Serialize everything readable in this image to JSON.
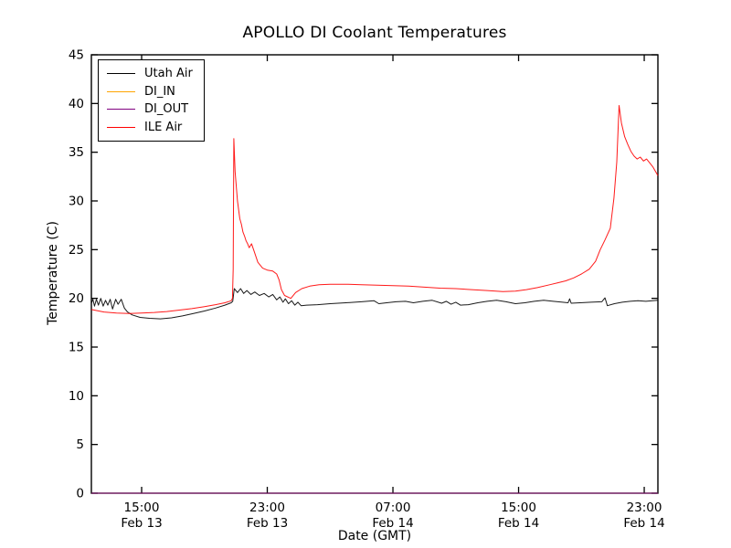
{
  "title": "APOLLO DI Coolant Temperatures",
  "axes": {
    "xlabel": "Date (GMT)",
    "ylabel": "Temperature (C)",
    "frame_color": "#000000",
    "background": "#ffffff"
  },
  "legend": {
    "position": "upper left",
    "items": [
      {
        "label": "Utah Air",
        "color": "#000000"
      },
      {
        "label": "DI_IN",
        "color": "#ffa500"
      },
      {
        "label": "DI_OUT",
        "color": "#800080"
      },
      {
        "label": "ILE Air",
        "color": "#ff0000"
      }
    ]
  },
  "chart_data": {
    "type": "line",
    "title": "APOLLO DI Coolant Temperatures",
    "xlabel": "Date (GMT)",
    "ylabel": "Temperature (C)",
    "ylim": [
      0,
      45
    ],
    "grid": false,
    "legend_position": "upper left",
    "x_unit": "hours after Feb 13 12:00 GMT",
    "xlim": [
      -0.2,
      35.87
    ],
    "y_ticks": [
      0,
      5,
      10,
      15,
      20,
      25,
      30,
      35,
      40,
      45
    ],
    "x_ticks": [
      {
        "t": 3,
        "time": "15:00",
        "date": "Feb 13"
      },
      {
        "t": 11,
        "time": "23:00",
        "date": "Feb 13"
      },
      {
        "t": 19,
        "time": "07:00",
        "date": "Feb 14"
      },
      {
        "t": 27,
        "time": "15:00",
        "date": "Feb 14"
      },
      {
        "t": 35,
        "time": "23:00",
        "date": "Feb 14"
      }
    ],
    "series": [
      {
        "name": "Utah Air",
        "color": "#000000",
        "points": [
          [
            -0.2,
            19.5
          ],
          [
            -0.1,
            19.9
          ],
          [
            0.0,
            19.2
          ],
          [
            0.12,
            19.9
          ],
          [
            0.25,
            19.3
          ],
          [
            0.4,
            20.0
          ],
          [
            0.55,
            19.2
          ],
          [
            0.7,
            19.8
          ],
          [
            0.85,
            19.3
          ],
          [
            1.0,
            19.9
          ],
          [
            1.15,
            18.9
          ],
          [
            1.35,
            19.9
          ],
          [
            1.5,
            19.4
          ],
          [
            1.7,
            19.9
          ],
          [
            1.9,
            19.0
          ],
          [
            2.1,
            18.6
          ],
          [
            2.4,
            18.3
          ],
          [
            2.9,
            18.05
          ],
          [
            3.5,
            17.95
          ],
          [
            4.2,
            17.9
          ],
          [
            4.9,
            18.0
          ],
          [
            5.6,
            18.2
          ],
          [
            6.3,
            18.45
          ],
          [
            7.0,
            18.7
          ],
          [
            7.7,
            19.0
          ],
          [
            8.3,
            19.3
          ],
          [
            8.7,
            19.55
          ],
          [
            8.8,
            19.7
          ],
          [
            8.9,
            21.0
          ],
          [
            9.1,
            20.6
          ],
          [
            9.3,
            21.0
          ],
          [
            9.5,
            20.5
          ],
          [
            9.7,
            20.8
          ],
          [
            9.95,
            20.4
          ],
          [
            10.2,
            20.65
          ],
          [
            10.5,
            20.3
          ],
          [
            10.8,
            20.5
          ],
          [
            11.1,
            20.15
          ],
          [
            11.35,
            20.4
          ],
          [
            11.6,
            19.85
          ],
          [
            11.8,
            20.15
          ],
          [
            12.0,
            19.6
          ],
          [
            12.15,
            19.95
          ],
          [
            12.35,
            19.45
          ],
          [
            12.55,
            19.75
          ],
          [
            12.75,
            19.3
          ],
          [
            12.95,
            19.6
          ],
          [
            13.15,
            19.25
          ],
          [
            13.5,
            19.3
          ],
          [
            14.2,
            19.35
          ],
          [
            15.0,
            19.45
          ],
          [
            16.0,
            19.55
          ],
          [
            17.0,
            19.65
          ],
          [
            17.8,
            19.75
          ],
          [
            18.1,
            19.45
          ],
          [
            18.6,
            19.55
          ],
          [
            19.2,
            19.65
          ],
          [
            19.8,
            19.7
          ],
          [
            20.3,
            19.55
          ],
          [
            20.9,
            19.7
          ],
          [
            21.5,
            19.8
          ],
          [
            22.1,
            19.5
          ],
          [
            22.4,
            19.7
          ],
          [
            22.7,
            19.4
          ],
          [
            23.0,
            19.6
          ],
          [
            23.3,
            19.3
          ],
          [
            23.8,
            19.35
          ],
          [
            24.4,
            19.55
          ],
          [
            25.0,
            19.7
          ],
          [
            25.6,
            19.8
          ],
          [
            26.2,
            19.65
          ],
          [
            26.8,
            19.45
          ],
          [
            27.4,
            19.55
          ],
          [
            28.0,
            19.7
          ],
          [
            28.6,
            19.8
          ],
          [
            29.2,
            19.7
          ],
          [
            29.8,
            19.6
          ],
          [
            30.15,
            19.55
          ],
          [
            30.25,
            19.95
          ],
          [
            30.35,
            19.5
          ],
          [
            30.9,
            19.55
          ],
          [
            31.6,
            19.6
          ],
          [
            32.3,
            19.65
          ],
          [
            32.5,
            20.05
          ],
          [
            32.65,
            19.25
          ],
          [
            33.1,
            19.45
          ],
          [
            33.6,
            19.6
          ],
          [
            34.1,
            19.7
          ],
          [
            34.6,
            19.75
          ],
          [
            35.1,
            19.7
          ],
          [
            35.87,
            19.8
          ]
        ]
      },
      {
        "name": "DI_IN",
        "color": "#ffa500",
        "points": [
          [
            -0.2,
            0
          ],
          [
            35.87,
            0
          ]
        ]
      },
      {
        "name": "DI_OUT",
        "color": "#800080",
        "points": [
          [
            -0.2,
            0
          ],
          [
            35.87,
            0
          ]
        ]
      },
      {
        "name": "ILE Air",
        "color": "#ff0000",
        "points": [
          [
            -0.2,
            18.85
          ],
          [
            0.6,
            18.6
          ],
          [
            1.4,
            18.5
          ],
          [
            2.2,
            18.45
          ],
          [
            3.0,
            18.5
          ],
          [
            3.8,
            18.55
          ],
          [
            4.6,
            18.65
          ],
          [
            5.4,
            18.8
          ],
          [
            6.2,
            18.95
          ],
          [
            7.0,
            19.15
          ],
          [
            7.7,
            19.35
          ],
          [
            8.3,
            19.55
          ],
          [
            8.7,
            19.75
          ],
          [
            8.78,
            20.0
          ],
          [
            8.83,
            23.0
          ],
          [
            8.87,
            36.4
          ],
          [
            8.95,
            33.0
          ],
          [
            9.1,
            30.0
          ],
          [
            9.25,
            28.2
          ],
          [
            9.35,
            27.6
          ],
          [
            9.45,
            26.8
          ],
          [
            9.55,
            26.4
          ],
          [
            9.65,
            25.9
          ],
          [
            9.75,
            25.6
          ],
          [
            9.85,
            25.2
          ],
          [
            10.0,
            25.6
          ],
          [
            10.15,
            24.9
          ],
          [
            10.4,
            23.7
          ],
          [
            10.7,
            23.1
          ],
          [
            11.0,
            22.9
          ],
          [
            11.35,
            22.8
          ],
          [
            11.6,
            22.5
          ],
          [
            11.75,
            21.9
          ],
          [
            11.9,
            20.9
          ],
          [
            12.1,
            20.3
          ],
          [
            12.5,
            20.0
          ],
          [
            12.8,
            20.6
          ],
          [
            13.2,
            21.0
          ],
          [
            13.7,
            21.25
          ],
          [
            14.3,
            21.4
          ],
          [
            15.0,
            21.45
          ],
          [
            16.0,
            21.45
          ],
          [
            17.0,
            21.4
          ],
          [
            18.0,
            21.35
          ],
          [
            19.0,
            21.3
          ],
          [
            20.0,
            21.25
          ],
          [
            21.0,
            21.15
          ],
          [
            22.0,
            21.05
          ],
          [
            23.0,
            21.0
          ],
          [
            24.0,
            20.9
          ],
          [
            25.0,
            20.8
          ],
          [
            26.0,
            20.7
          ],
          [
            26.8,
            20.75
          ],
          [
            27.5,
            20.9
          ],
          [
            28.2,
            21.1
          ],
          [
            29.0,
            21.4
          ],
          [
            29.5,
            21.6
          ],
          [
            30.0,
            21.8
          ],
          [
            30.5,
            22.1
          ],
          [
            31.0,
            22.5
          ],
          [
            31.5,
            23.0
          ],
          [
            31.9,
            23.8
          ],
          [
            32.2,
            25.0
          ],
          [
            32.5,
            26.0
          ],
          [
            32.84,
            27.2
          ],
          [
            33.07,
            30.3
          ],
          [
            33.25,
            34.0
          ],
          [
            33.4,
            39.8
          ],
          [
            33.55,
            38.0
          ],
          [
            33.75,
            36.6
          ],
          [
            33.95,
            35.8
          ],
          [
            34.15,
            35.1
          ],
          [
            34.35,
            34.6
          ],
          [
            34.55,
            34.3
          ],
          [
            34.75,
            34.5
          ],
          [
            34.95,
            34.1
          ],
          [
            35.15,
            34.3
          ],
          [
            35.35,
            33.9
          ],
          [
            35.55,
            33.5
          ],
          [
            35.87,
            32.6
          ]
        ]
      }
    ]
  }
}
